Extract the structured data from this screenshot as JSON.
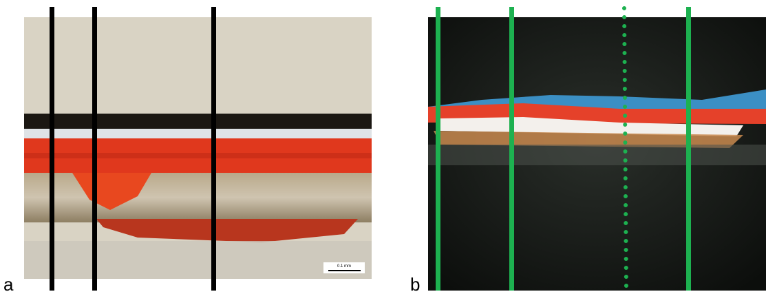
{
  "panels": [
    {
      "label": "a",
      "scale_bar": "0.1 mm"
    },
    {
      "label": "b"
    }
  ]
}
